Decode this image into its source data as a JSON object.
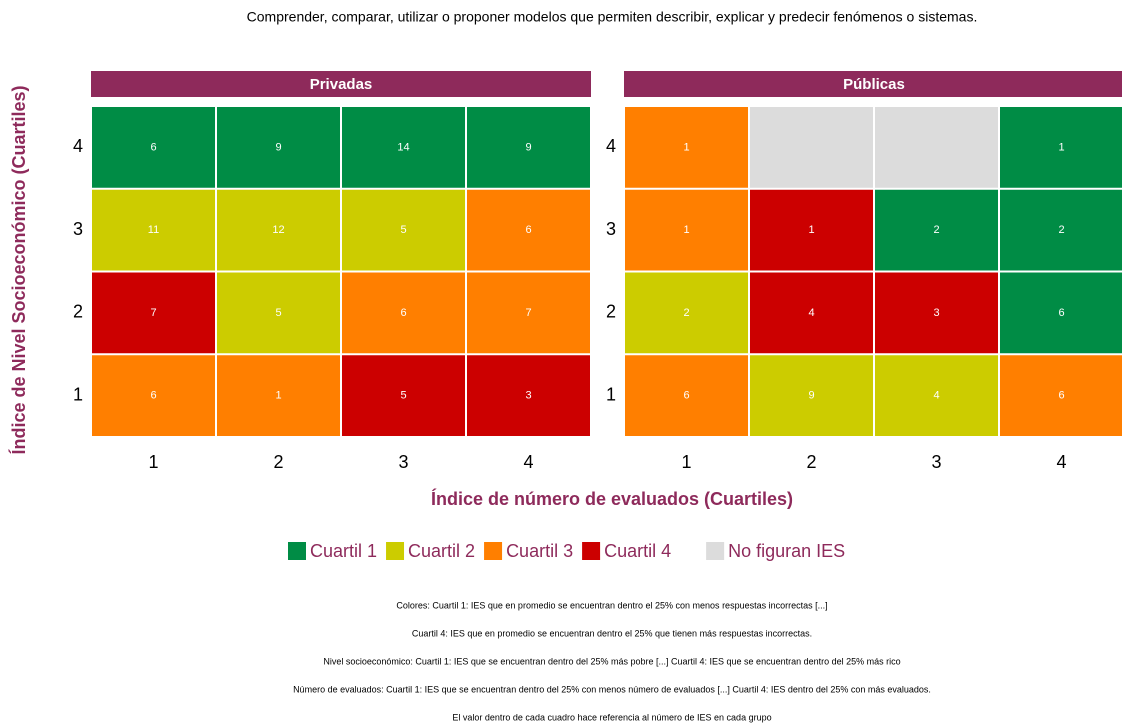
{
  "chart_data": {
    "type": "heatmap",
    "title": "Comprender, comparar, utilizar o proponer modelos que permiten describir, explicar y predecir fenómenos o sistemas.",
    "x_label": "Índice de número de evaluados (Cuartiles)",
    "y_label": "Índice de Nivel Socioeconómico (Cuartiles)",
    "x_categories": [
      1,
      2,
      3,
      4
    ],
    "y_categories": [
      1,
      2,
      3,
      4
    ],
    "panels": [
      {
        "name": "Privadas",
        "values": [
          [
            6,
            1,
            5,
            3
          ],
          [
            7,
            5,
            6,
            7
          ],
          [
            11,
            12,
            5,
            6
          ],
          [
            6,
            9,
            14,
            9
          ]
        ],
        "colors": [
          [
            "#ff7f00",
            "#ff7f00",
            "#cc0000",
            "#cc0000"
          ],
          [
            "#cc0000",
            "#cccc00",
            "#ff7f00",
            "#ff7f00"
          ],
          [
            "#cccc00",
            "#cccc00",
            "#cccc00",
            "#ff7f00"
          ],
          [
            "#008c45",
            "#008c45",
            "#008c45",
            "#008c45"
          ]
        ]
      },
      {
        "name": "Públicas",
        "values": [
          [
            6,
            9,
            4,
            6
          ],
          [
            2,
            4,
            3,
            6
          ],
          [
            1,
            1,
            2,
            2
          ],
          [
            1,
            null,
            null,
            1
          ]
        ],
        "colors": [
          [
            "#ff7f00",
            "#cccc00",
            "#cccc00",
            "#ff7f00"
          ],
          [
            "#cccc00",
            "#cc0000",
            "#cc0000",
            "#008c45"
          ],
          [
            "#ff7f00",
            "#cc0000",
            "#008c45",
            "#008c45"
          ],
          [
            "#ff7f00",
            "#dcdcdc",
            "#dcdcdc",
            "#008c45"
          ]
        ]
      }
    ],
    "legend": [
      {
        "name": "Cuartil 1",
        "color": "#008c45"
      },
      {
        "name": "Cuartil 2",
        "color": "#cccc00"
      },
      {
        "name": "Cuartil 3",
        "color": "#ff7f00"
      },
      {
        "name": "Cuartil 4",
        "color": "#cc0000"
      },
      {
        "name": "No figuran IES",
        "color": "#dcdcdc"
      }
    ],
    "notes": [
      "Colores: Cuartil 1:  IES que en promedio se encuentran dentro el 25% con menos respuestas incorrectas [...]",
      "Cuartil 4: IES que en promedio se encuentran dentro el 25% que tienen más respuestas incorrectas.",
      "Nivel socioeconómico: Cuartil 1: IES que se encuentran dentro del 25% más pobre [...] Cuartil 4: IES que se encuentran dentro del 25% más rico",
      "Número de evaluados: Cuartil 1: IES que se encuentran dentro del 25% con menos número de evaluados [...] Cuartil 4: IES dentro del 25% con más evaluados.",
      "El valor dentro de cada cuadro hace referencia al número de IES en cada grupo"
    ]
  }
}
